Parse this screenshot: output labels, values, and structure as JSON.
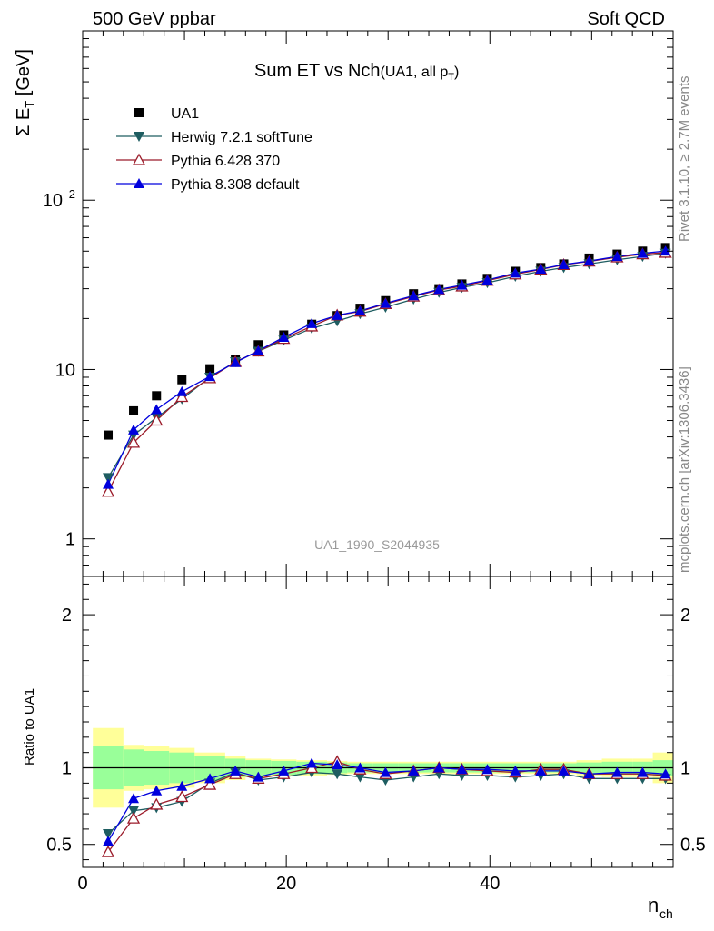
{
  "header": {
    "left": "500 GeV ppbar",
    "right": "Soft QCD"
  },
  "side": {
    "rivet": "Rivet 3.1.10, ≥ 2.7M events",
    "mcplots": "mcplots.cern.ch [arXiv:1306.3436]"
  },
  "chart_data": {
    "type": "scatter",
    "title": "Sum ET vs Nch",
    "title_suffix": "(UA1, all p",
    "title_suffix_sub": "T",
    "title_suffix_close": ")",
    "analysis_id": "UA1_1990_S2044935",
    "ylabel_main": "Σ E",
    "ylabel_main_sub": "T",
    "ylabel_main_unit": " [GeV]",
    "ylabel_ratio": "Ratio to UA1",
    "xlabel": "n",
    "xlabel_sub": "ch",
    "xlim": [
      0,
      58
    ],
    "ylim_main": [
      0.6,
      1000
    ],
    "yscale_main": "log",
    "ylim_ratio": [
      0.35,
      2.25
    ],
    "main_yticks": [
      {
        "v": 1,
        "label": "1"
      },
      {
        "v": 10,
        "label": "10"
      },
      {
        "v": 100,
        "label": "10",
        "sup": "2"
      }
    ],
    "ratio_yticks": [
      {
        "v": 0.5,
        "label": "0.5"
      },
      {
        "v": 1,
        "label": "1"
      },
      {
        "v": 2,
        "label": "2"
      }
    ],
    "xticks": [
      {
        "v": 0,
        "label": "0"
      },
      {
        "v": 20,
        "label": "20"
      },
      {
        "v": 40,
        "label": "40"
      }
    ],
    "x": [
      2.5,
      5,
      7.25,
      9.75,
      12.5,
      15,
      17.25,
      19.75,
      22.5,
      25,
      27.25,
      29.75,
      32.5,
      35,
      37.25,
      39.75,
      42.5,
      45,
      47.25,
      49.75,
      52.5,
      55,
      57.25
    ],
    "band_edges": [
      1,
      4,
      6,
      8.5,
      11,
      14,
      16,
      18.5,
      21,
      24,
      26,
      28.5,
      31,
      34,
      36,
      38.5,
      41,
      44,
      46,
      48.5,
      51,
      54,
      56,
      58
    ],
    "stat_band": [
      0.14,
      0.12,
      0.11,
      0.1,
      0.08,
      0.06,
      0.05,
      0.045,
      0.04,
      0.035,
      0.03,
      0.03,
      0.03,
      0.03,
      0.03,
      0.03,
      0.03,
      0.03,
      0.03,
      0.035,
      0.04,
      0.04,
      0.05
    ],
    "total_band": [
      0.26,
      0.15,
      0.14,
      0.13,
      0.1,
      0.08,
      0.06,
      0.055,
      0.05,
      0.045,
      0.04,
      0.04,
      0.04,
      0.04,
      0.04,
      0.04,
      0.04,
      0.04,
      0.04,
      0.05,
      0.06,
      0.06,
      0.1
    ],
    "series": [
      {
        "name": "UA1",
        "marker": "square",
        "color": "#000000",
        "values": [
          4.1,
          5.7,
          7.0,
          8.7,
          10.1,
          11.4,
          14.0,
          16.0,
          18.5,
          20.8,
          23.0,
          25.5,
          28.0,
          30.0,
          32.0,
          34.5,
          38.0,
          40.0,
          42.0,
          45.5,
          48.0,
          50.0,
          52.5
        ]
      },
      {
        "name": "Herwig 7.2.1 softTune",
        "marker": "triangle-down",
        "color": "#1e5d61",
        "values": [
          2.3,
          4.1,
          5.2,
          6.7,
          9.0,
          11.1,
          12.8,
          14.9,
          17.5,
          19.3,
          21.3,
          23.3,
          26.0,
          28.5,
          30.5,
          32.5,
          35.5,
          38.0,
          40.0,
          42.0,
          44.5,
          46.5,
          48.5
        ],
        "ratio": [
          0.57,
          0.72,
          0.74,
          0.78,
          0.9,
          0.97,
          0.92,
          0.94,
          0.97,
          0.96,
          0.94,
          0.92,
          0.94,
          0.96,
          0.95,
          0.95,
          0.94,
          0.95,
          0.96,
          0.93,
          0.93,
          0.93,
          0.93
        ]
      },
      {
        "name": "Pythia 6.428 370",
        "marker": "triangle-up-open",
        "color": "#9b1b2a",
        "values": [
          1.9,
          3.7,
          5.0,
          6.9,
          8.9,
          11.1,
          12.8,
          15.2,
          18.0,
          20.9,
          22.0,
          24.4,
          27.0,
          29.5,
          31.0,
          33.5,
          36.5,
          39.0,
          41.5,
          43.5,
          46.0,
          48.0,
          49.0
        ],
        "ratio": [
          0.45,
          0.67,
          0.76,
          0.81,
          0.89,
          0.96,
          0.93,
          0.96,
          1.0,
          1.04,
          0.99,
          0.96,
          0.98,
          1.0,
          0.99,
          0.98,
          0.97,
          0.99,
          0.99,
          0.96,
          0.96,
          0.96,
          0.95
        ]
      },
      {
        "name": "Pythia 8.308 default",
        "marker": "triangle-up",
        "color": "#0000dd",
        "values": [
          2.1,
          4.4,
          5.8,
          7.4,
          9.1,
          11.0,
          12.9,
          15.5,
          18.7,
          20.9,
          22.2,
          24.6,
          27.3,
          29.7,
          31.5,
          33.8,
          37.1,
          39.2,
          41.7,
          43.7,
          46.5,
          48.6,
          50.1
        ],
        "ratio": [
          0.52,
          0.8,
          0.85,
          0.88,
          0.93,
          0.98,
          0.94,
          0.98,
          1.03,
          1.02,
          1.0,
          0.97,
          0.98,
          1.0,
          0.99,
          0.99,
          0.98,
          0.98,
          0.98,
          0.96,
          0.97,
          0.97,
          0.96
        ]
      }
    ],
    "colors": {
      "stat_band": "#99ff99",
      "total_band": "#ffff99"
    }
  }
}
